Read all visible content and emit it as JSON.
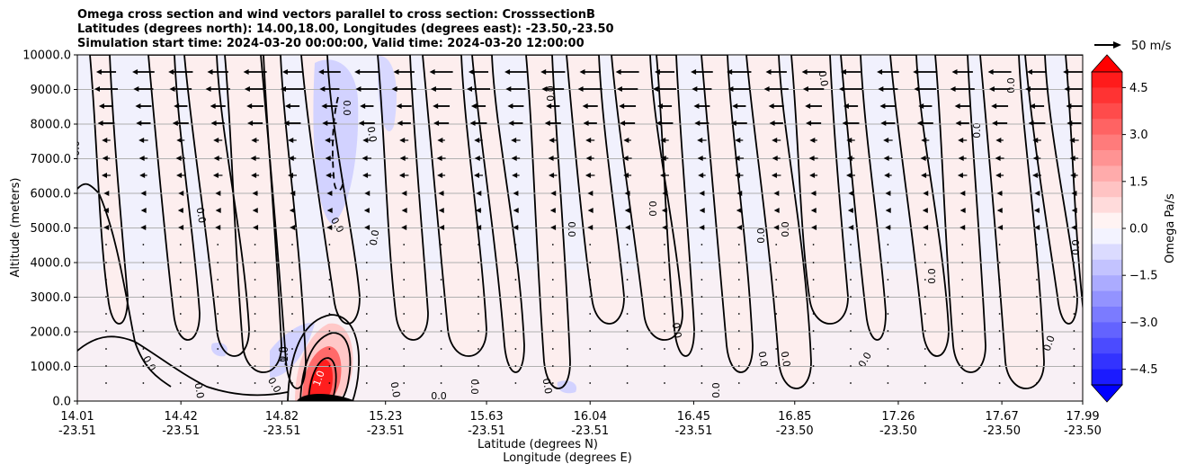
{
  "title": {
    "line1": "Omega cross section and wind vectors parallel to cross section: CrosssectionB",
    "line2": "Latitudes (degrees north): 14.00,18.00, Longitudes (degrees east): -23.50,-23.50",
    "line3": "Simulation start time: 2024-03-20 00:00:00, Valid time: 2024-03-20 12:00:00"
  },
  "chart_data": {
    "type": "heatmap",
    "description_series": "Omega (filled contours) with wind vectors",
    "xlabel_1": "Latitude (degrees N)",
    "xlabel_2": "Longitude (degrees E)",
    "ylabel": "Altitude (meters)",
    "x_ticks": [
      {
        "lat": "14.01",
        "lon": "-23.51"
      },
      {
        "lat": "14.42",
        "lon": "-23.51"
      },
      {
        "lat": "14.82",
        "lon": "-23.51"
      },
      {
        "lat": "15.23",
        "lon": "-23.51"
      },
      {
        "lat": "15.63",
        "lon": "-23.51"
      },
      {
        "lat": "16.04",
        "lon": "-23.51"
      },
      {
        "lat": "16.45",
        "lon": "-23.51"
      },
      {
        "lat": "16.85",
        "lon": "-23.50"
      },
      {
        "lat": "17.26",
        "lon": "-23.50"
      },
      {
        "lat": "17.67",
        "lon": "-23.50"
      },
      {
        "lat": "17.99",
        "lon": "-23.50"
      }
    ],
    "xlim": [
      14.01,
      17.99
    ],
    "y_ticks": [
      "0.0",
      "1000.0",
      "2000.0",
      "3000.0",
      "4000.0",
      "5000.0",
      "6000.0",
      "7000.0",
      "8000.0",
      "9000.0",
      "10000.0"
    ],
    "ylim": [
      0,
      10000
    ],
    "grid": "horizontal",
    "colorbar": {
      "label": "Omega Pa/s",
      "ticks": [
        "4.5",
        "3.0",
        "1.5",
        "0.0",
        "−1.5",
        "−3.0",
        "−4.5"
      ],
      "range": [
        -5,
        5
      ]
    },
    "quiver_key": "50 m/s",
    "contour_labels": [
      "0.0",
      "-1.0",
      "1.0",
      "0.0",
      "0.0",
      "0.0"
    ]
  },
  "colors": {
    "positive": "#ff0000",
    "negative": "#0000ff",
    "neutral": "#ffffff"
  }
}
